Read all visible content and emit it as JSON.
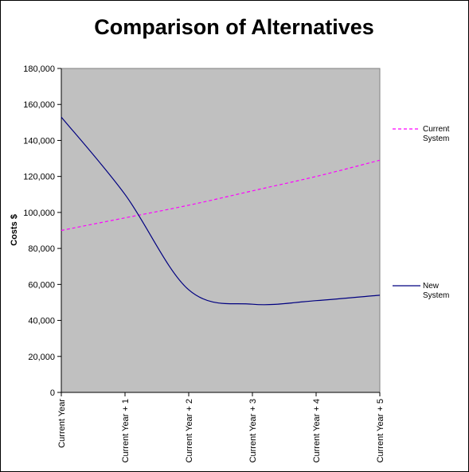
{
  "chart_data": {
    "type": "line",
    "title": "Comparison of Alternatives",
    "xlabel": "",
    "ylabel": "Costs $",
    "categories": [
      "Current Year",
      "Current Year + 1",
      "Current Year + 2",
      "Current Year + 3",
      "Current Year + 4",
      "Current Year + 5"
    ],
    "ylim": [
      0,
      180000
    ],
    "yticks": [
      0,
      20000,
      40000,
      60000,
      80000,
      100000,
      120000,
      140000,
      160000,
      180000
    ],
    "ytick_labels": [
      "0",
      "20,000",
      "40,000",
      "60,000",
      "80,000",
      "100,000",
      "120,000",
      "140,000",
      "160,000",
      "180,000"
    ],
    "grid": false,
    "plot_background": "#c0c0c0",
    "legend_position": "right",
    "series": [
      {
        "name": "Current System",
        "legend_lines": [
          "Current",
          "System"
        ],
        "values": [
          90000,
          97000,
          104000,
          112000,
          120000,
          129000
        ],
        "color": "#ff00ff",
        "dash": "dashed"
      },
      {
        "name": "New System",
        "legend_lines": [
          "New",
          "System"
        ],
        "values": [
          153000,
          110000,
          57000,
          49000,
          51000,
          54000
        ],
        "color": "#000080",
        "dash": "solid"
      }
    ]
  }
}
